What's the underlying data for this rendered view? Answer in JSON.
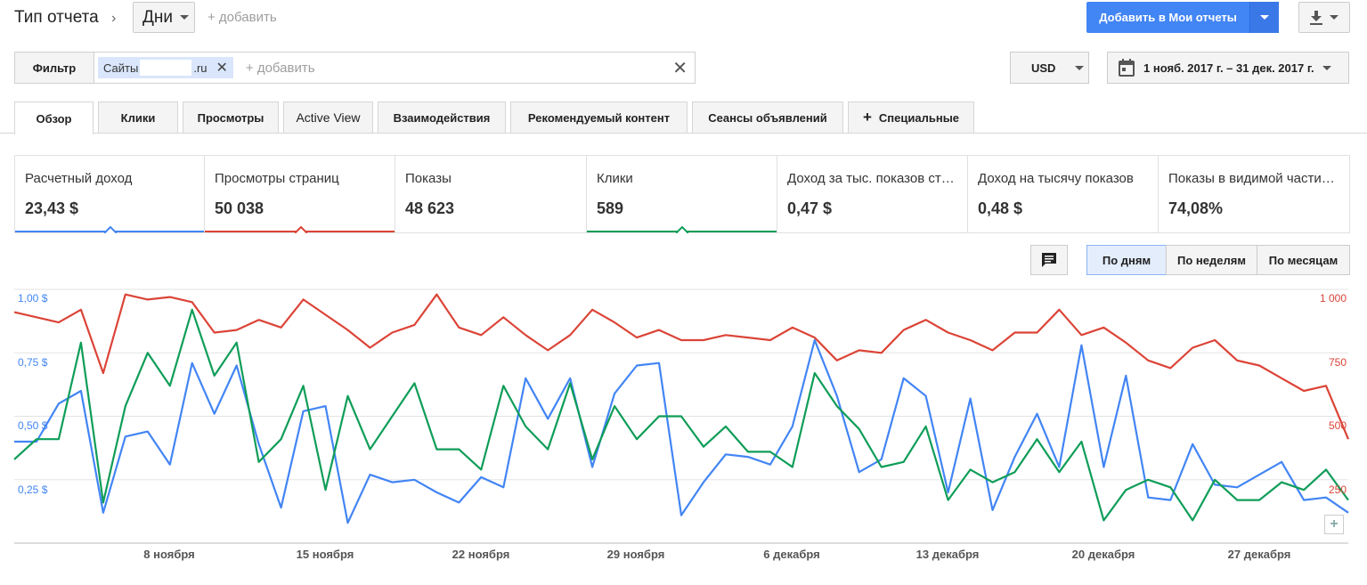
{
  "header": {
    "report_type_label": "Тип отчета",
    "dimension_value": "Дни",
    "add_dimension": "+ добавить",
    "add_report_button": "Добавить в Мои отчеты"
  },
  "filter": {
    "label": "Фильтр",
    "chip_prefix": "Сайты",
    "chip_suffix": ".ru",
    "add_label": "+ добавить"
  },
  "currency": "USD",
  "date_range": "1 нояб. 2017 г. – 31 дек. 2017 г.",
  "tabs": [
    {
      "label": "Обзор"
    },
    {
      "label": "Клики"
    },
    {
      "label": "Просмотры"
    },
    {
      "label": "Active View"
    },
    {
      "label": "Взаимодействия"
    },
    {
      "label": "Рекомендуемый контент"
    },
    {
      "label": "Сеансы объявлений"
    },
    {
      "label": "Специальные"
    }
  ],
  "metrics": [
    {
      "name": "Расчетный доход",
      "value": "23,43 $",
      "color": "#4285f4"
    },
    {
      "name": "Просмотры страниц",
      "value": "50 038",
      "color": "#db4437"
    },
    {
      "name": "Показы",
      "value": "48 623",
      "color": ""
    },
    {
      "name": "Клики",
      "value": "589",
      "color": "#0f9d58"
    },
    {
      "name": "Доход за тыс. показов страниц",
      "value": "0,47 $",
      "color": ""
    },
    {
      "name": "Доход на тысячу показов",
      "value": "0,48 $",
      "color": ""
    },
    {
      "name": "Показы в видимой части экрана",
      "value": "74,08%",
      "color": ""
    }
  ],
  "granularity": {
    "days": "По дням",
    "weeks": "По неделям",
    "months": "По месяцам"
  },
  "chart_data": {
    "type": "line",
    "x_start": "2017-11-01",
    "x_end": "2017-12-31",
    "x_tick_labels": [
      "8 ноября",
      "15 ноября",
      "22 ноября",
      "29 ноября",
      "6 декабря",
      "13 декабря",
      "20 декабря",
      "27 декабря"
    ],
    "y_left_ticks": [
      "1,00 $",
      "0,75 $",
      "0,50 $",
      "0,25 $"
    ],
    "y_left_range": [
      0,
      1.0
    ],
    "y_right_ticks": [
      "1 000",
      "750",
      "500",
      "250"
    ],
    "y_right_range": [
      0,
      1000
    ],
    "grid": true,
    "series": [
      {
        "name": "Расчетный доход",
        "axis": "left",
        "color": "#4285f4",
        "values": [
          0.4,
          0.4,
          0.55,
          0.6,
          0.12,
          0.42,
          0.44,
          0.31,
          0.71,
          0.51,
          0.7,
          0.39,
          0.14,
          0.52,
          0.54,
          0.08,
          0.27,
          0.24,
          0.25,
          0.2,
          0.16,
          0.26,
          0.22,
          0.65,
          0.49,
          0.65,
          0.3,
          0.59,
          0.7,
          0.71,
          0.11,
          0.24,
          0.35,
          0.34,
          0.31,
          0.46,
          0.8,
          0.58,
          0.28,
          0.33,
          0.65,
          0.58,
          0.2,
          0.57,
          0.13,
          0.34,
          0.51,
          0.3,
          0.78,
          0.3,
          0.66,
          0.18,
          0.17,
          0.39,
          0.23,
          0.22,
          0.27,
          0.32,
          0.17,
          0.18,
          0.12
        ]
      },
      {
        "name": "Просмотры страниц",
        "axis": "right",
        "color": "#db4437",
        "values": [
          910,
          890,
          870,
          920,
          670,
          980,
          960,
          970,
          950,
          830,
          840,
          880,
          850,
          960,
          900,
          840,
          770,
          830,
          860,
          980,
          850,
          820,
          890,
          820,
          760,
          820,
          920,
          870,
          810,
          840,
          800,
          800,
          820,
          810,
          800,
          850,
          810,
          720,
          760,
          750,
          840,
          880,
          830,
          800,
          760,
          830,
          830,
          920,
          820,
          850,
          790,
          720,
          690,
          770,
          800,
          720,
          700,
          650,
          600,
          620,
          410
        ]
      },
      {
        "name": "Клики",
        "axis": "right",
        "color": "#0f9d58",
        "values": [
          330,
          410,
          410,
          790,
          160,
          540,
          750,
          620,
          920,
          660,
          790,
          320,
          410,
          620,
          210,
          580,
          370,
          500,
          630,
          370,
          370,
          290,
          620,
          460,
          370,
          630,
          330,
          540,
          410,
          500,
          500,
          380,
          460,
          360,
          360,
          300,
          670,
          540,
          450,
          300,
          320,
          460,
          170,
          290,
          240,
          280,
          410,
          280,
          400,
          90,
          210,
          250,
          220,
          90,
          250,
          170,
          170,
          240,
          210,
          290,
          170
        ]
      }
    ]
  }
}
